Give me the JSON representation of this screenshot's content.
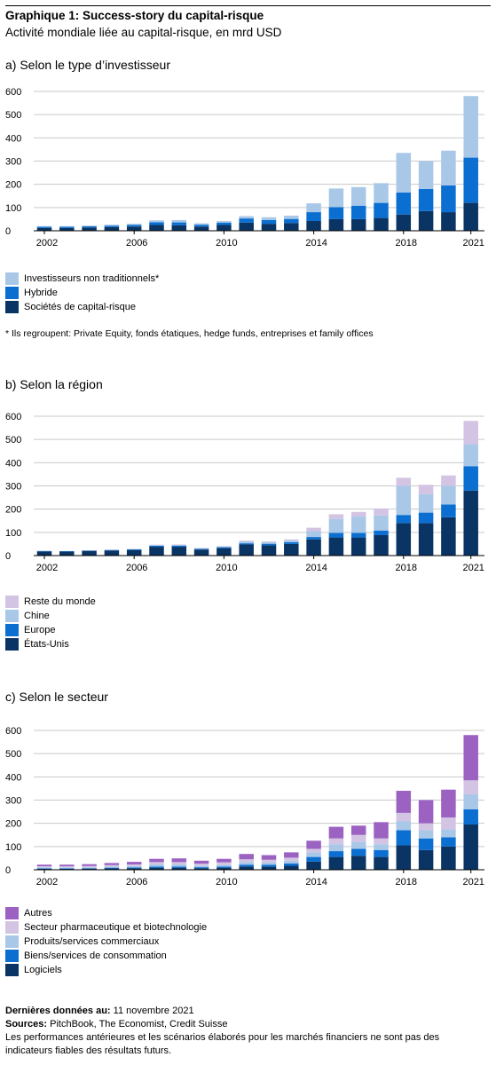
{
  "header": {
    "title": "Graphique 1: Success-story du capital-risque",
    "subtitle": "Activité mondiale liée au capital-risque, en mrd USD"
  },
  "colors": {
    "light": "#a9c8e8",
    "mid": "#0b6fd1",
    "dark": "#0a3463",
    "lilac": "#d4c4e3",
    "purple": "#9b62c2",
    "grid": "#c9c9c9"
  },
  "chart_data": [
    {
      "type": "bar",
      "stacked": true,
      "title": "a) Selon le type d’investisseur",
      "categories": [
        "2002",
        "2003",
        "2004",
        "2005",
        "2006",
        "2007",
        "2008",
        "2009",
        "2010",
        "2011",
        "2012",
        "2013",
        "2014",
        "2015",
        "2016",
        "2017",
        "2018",
        "2019",
        "2020",
        "2021"
      ],
      "x_tick_labels": [
        "2002",
        "2006",
        "2010",
        "2014",
        "2018",
        "2021"
      ],
      "ylim": [
        0,
        600
      ],
      "y_ticks": [
        "0",
        "100",
        "200",
        "300",
        "400",
        "500",
        "600"
      ],
      "grid": true,
      "series": [
        {
          "name": "Sociétés de capital-risque",
          "color": "#0a3463",
          "values": [
            12,
            12,
            14,
            16,
            18,
            25,
            24,
            18,
            25,
            35,
            30,
            33,
            42,
            50,
            50,
            55,
            70,
            85,
            80,
            120
          ]
        },
        {
          "name": "Hybride",
          "color": "#0b6fd1",
          "values": [
            5,
            5,
            5,
            6,
            7,
            12,
            12,
            8,
            10,
            18,
            16,
            18,
            38,
            52,
            58,
            65,
            95,
            95,
            115,
            195
          ]
        },
        {
          "name": "Investisseurs non traditionnels*",
          "color": "#a9c8e8",
          "values": [
            3,
            3,
            3,
            4,
            5,
            8,
            10,
            6,
            7,
            10,
            12,
            14,
            38,
            80,
            80,
            85,
            170,
            120,
            150,
            265
          ]
        }
      ],
      "legend": "bottom-left",
      "legend_entries": [
        "Investisseurs non traditionnels*",
        "Hybride",
        "Sociétés de capital-risque"
      ],
      "footnote": "* Ils regroupent: Private Equity, fonds étatiques, hedge funds, entreprises et family offices"
    },
    {
      "type": "bar",
      "stacked": true,
      "title": "b) Selon la région",
      "categories": [
        "2002",
        "2003",
        "2004",
        "2005",
        "2006",
        "2007",
        "2008",
        "2009",
        "2010",
        "2011",
        "2012",
        "2013",
        "2014",
        "2015",
        "2016",
        "2017",
        "2018",
        "2019",
        "2020",
        "2021"
      ],
      "x_tick_labels": [
        "2002",
        "2006",
        "2010",
        "2014",
        "2018",
        "2021"
      ],
      "ylim": [
        0,
        600
      ],
      "y_ticks": [
        "0",
        "100",
        "200",
        "300",
        "400",
        "500",
        "600"
      ],
      "grid": true,
      "series": [
        {
          "name": "États-Unis",
          "color": "#0a3463",
          "values": [
            18,
            17,
            20,
            22,
            24,
            38,
            38,
            26,
            32,
            48,
            45,
            50,
            70,
            78,
            78,
            88,
            140,
            140,
            165,
            280
          ]
        },
        {
          "name": "Europe",
          "color": "#0b6fd1",
          "values": [
            2,
            2,
            2,
            2,
            3,
            4,
            4,
            3,
            4,
            5,
            6,
            8,
            10,
            20,
            20,
            20,
            35,
            45,
            55,
            105
          ]
        },
        {
          "name": "Chine",
          "color": "#a9c8e8",
          "values": [
            0,
            0,
            0,
            1,
            1,
            3,
            4,
            2,
            3,
            8,
            6,
            8,
            25,
            60,
            70,
            65,
            125,
            80,
            80,
            95
          ]
        },
        {
          "name": "Reste du monde",
          "color": "#d4c4e3",
          "values": [
            1,
            1,
            1,
            1,
            1,
            2,
            2,
            2,
            2,
            3,
            4,
            4,
            15,
            20,
            20,
            30,
            35,
            40,
            45,
            100
          ]
        }
      ],
      "legend": "bottom-left",
      "legend_entries": [
        "Reste du monde",
        "Chine",
        "Europe",
        "États-Unis"
      ]
    },
    {
      "type": "bar",
      "stacked": true,
      "title": "c) Selon le secteur",
      "categories": [
        "2002",
        "2003",
        "2004",
        "2005",
        "2006",
        "2007",
        "2008",
        "2009",
        "2010",
        "2011",
        "2012",
        "2013",
        "2014",
        "2015",
        "2016",
        "2017",
        "2018",
        "2019",
        "2020",
        "2021"
      ],
      "x_tick_labels": [
        "2002",
        "2006",
        "2010",
        "2014",
        "2018",
        "2021"
      ],
      "ylim": [
        0,
        600
      ],
      "y_ticks": [
        "0",
        "100",
        "200",
        "300",
        "400",
        "500",
        "600"
      ],
      "grid": true,
      "series": [
        {
          "name": "Logiciels",
          "color": "#0a3463",
          "values": [
            4,
            4,
            5,
            6,
            7,
            9,
            9,
            7,
            9,
            14,
            13,
            17,
            35,
            55,
            60,
            55,
            105,
            85,
            100,
            195
          ]
        },
        {
          "name": "Biens/services de consommation",
          "color": "#0b6fd1",
          "values": [
            2,
            2,
            2,
            3,
            3,
            5,
            5,
            4,
            5,
            8,
            8,
            10,
            20,
            25,
            30,
            30,
            65,
            50,
            40,
            65
          ]
        },
        {
          "name": "Produits/services commerciaux",
          "color": "#a9c8e8",
          "values": [
            4,
            4,
            4,
            5,
            6,
            9,
            9,
            7,
            8,
            11,
            10,
            12,
            20,
            30,
            30,
            25,
            40,
            35,
            35,
            65
          ]
        },
        {
          "name": "Secteur pharmaceutique et biotechnologie",
          "color": "#d4c4e3",
          "values": [
            5,
            5,
            5,
            6,
            7,
            10,
            10,
            8,
            10,
            12,
            12,
            13,
            15,
            25,
            30,
            25,
            35,
            30,
            50,
            60
          ]
        },
        {
          "name": "Autres",
          "color": "#9b62c2",
          "values": [
            7,
            7,
            8,
            9,
            11,
            14,
            16,
            13,
            15,
            23,
            20,
            23,
            35,
            50,
            40,
            70,
            95,
            100,
            120,
            195
          ]
        }
      ],
      "legend": "bottom-left",
      "legend_entries": [
        "Autres",
        "Secteur pharmaceutique et biotechnologie",
        "Produits/services commerciaux",
        "Biens/services de consommation",
        "Logiciels"
      ]
    }
  ],
  "footer": {
    "date_label": "Dernières données au:",
    "date_value": "11 novembre 2021",
    "sources_label": "Sources:",
    "sources_value": "PitchBook, The Economist, Credit Suisse",
    "disclaimer": "Les performances antérieures et les scénarios élaborés pour les marchés financiers ne sont pas des indicateurs fiables des résultats futurs."
  }
}
